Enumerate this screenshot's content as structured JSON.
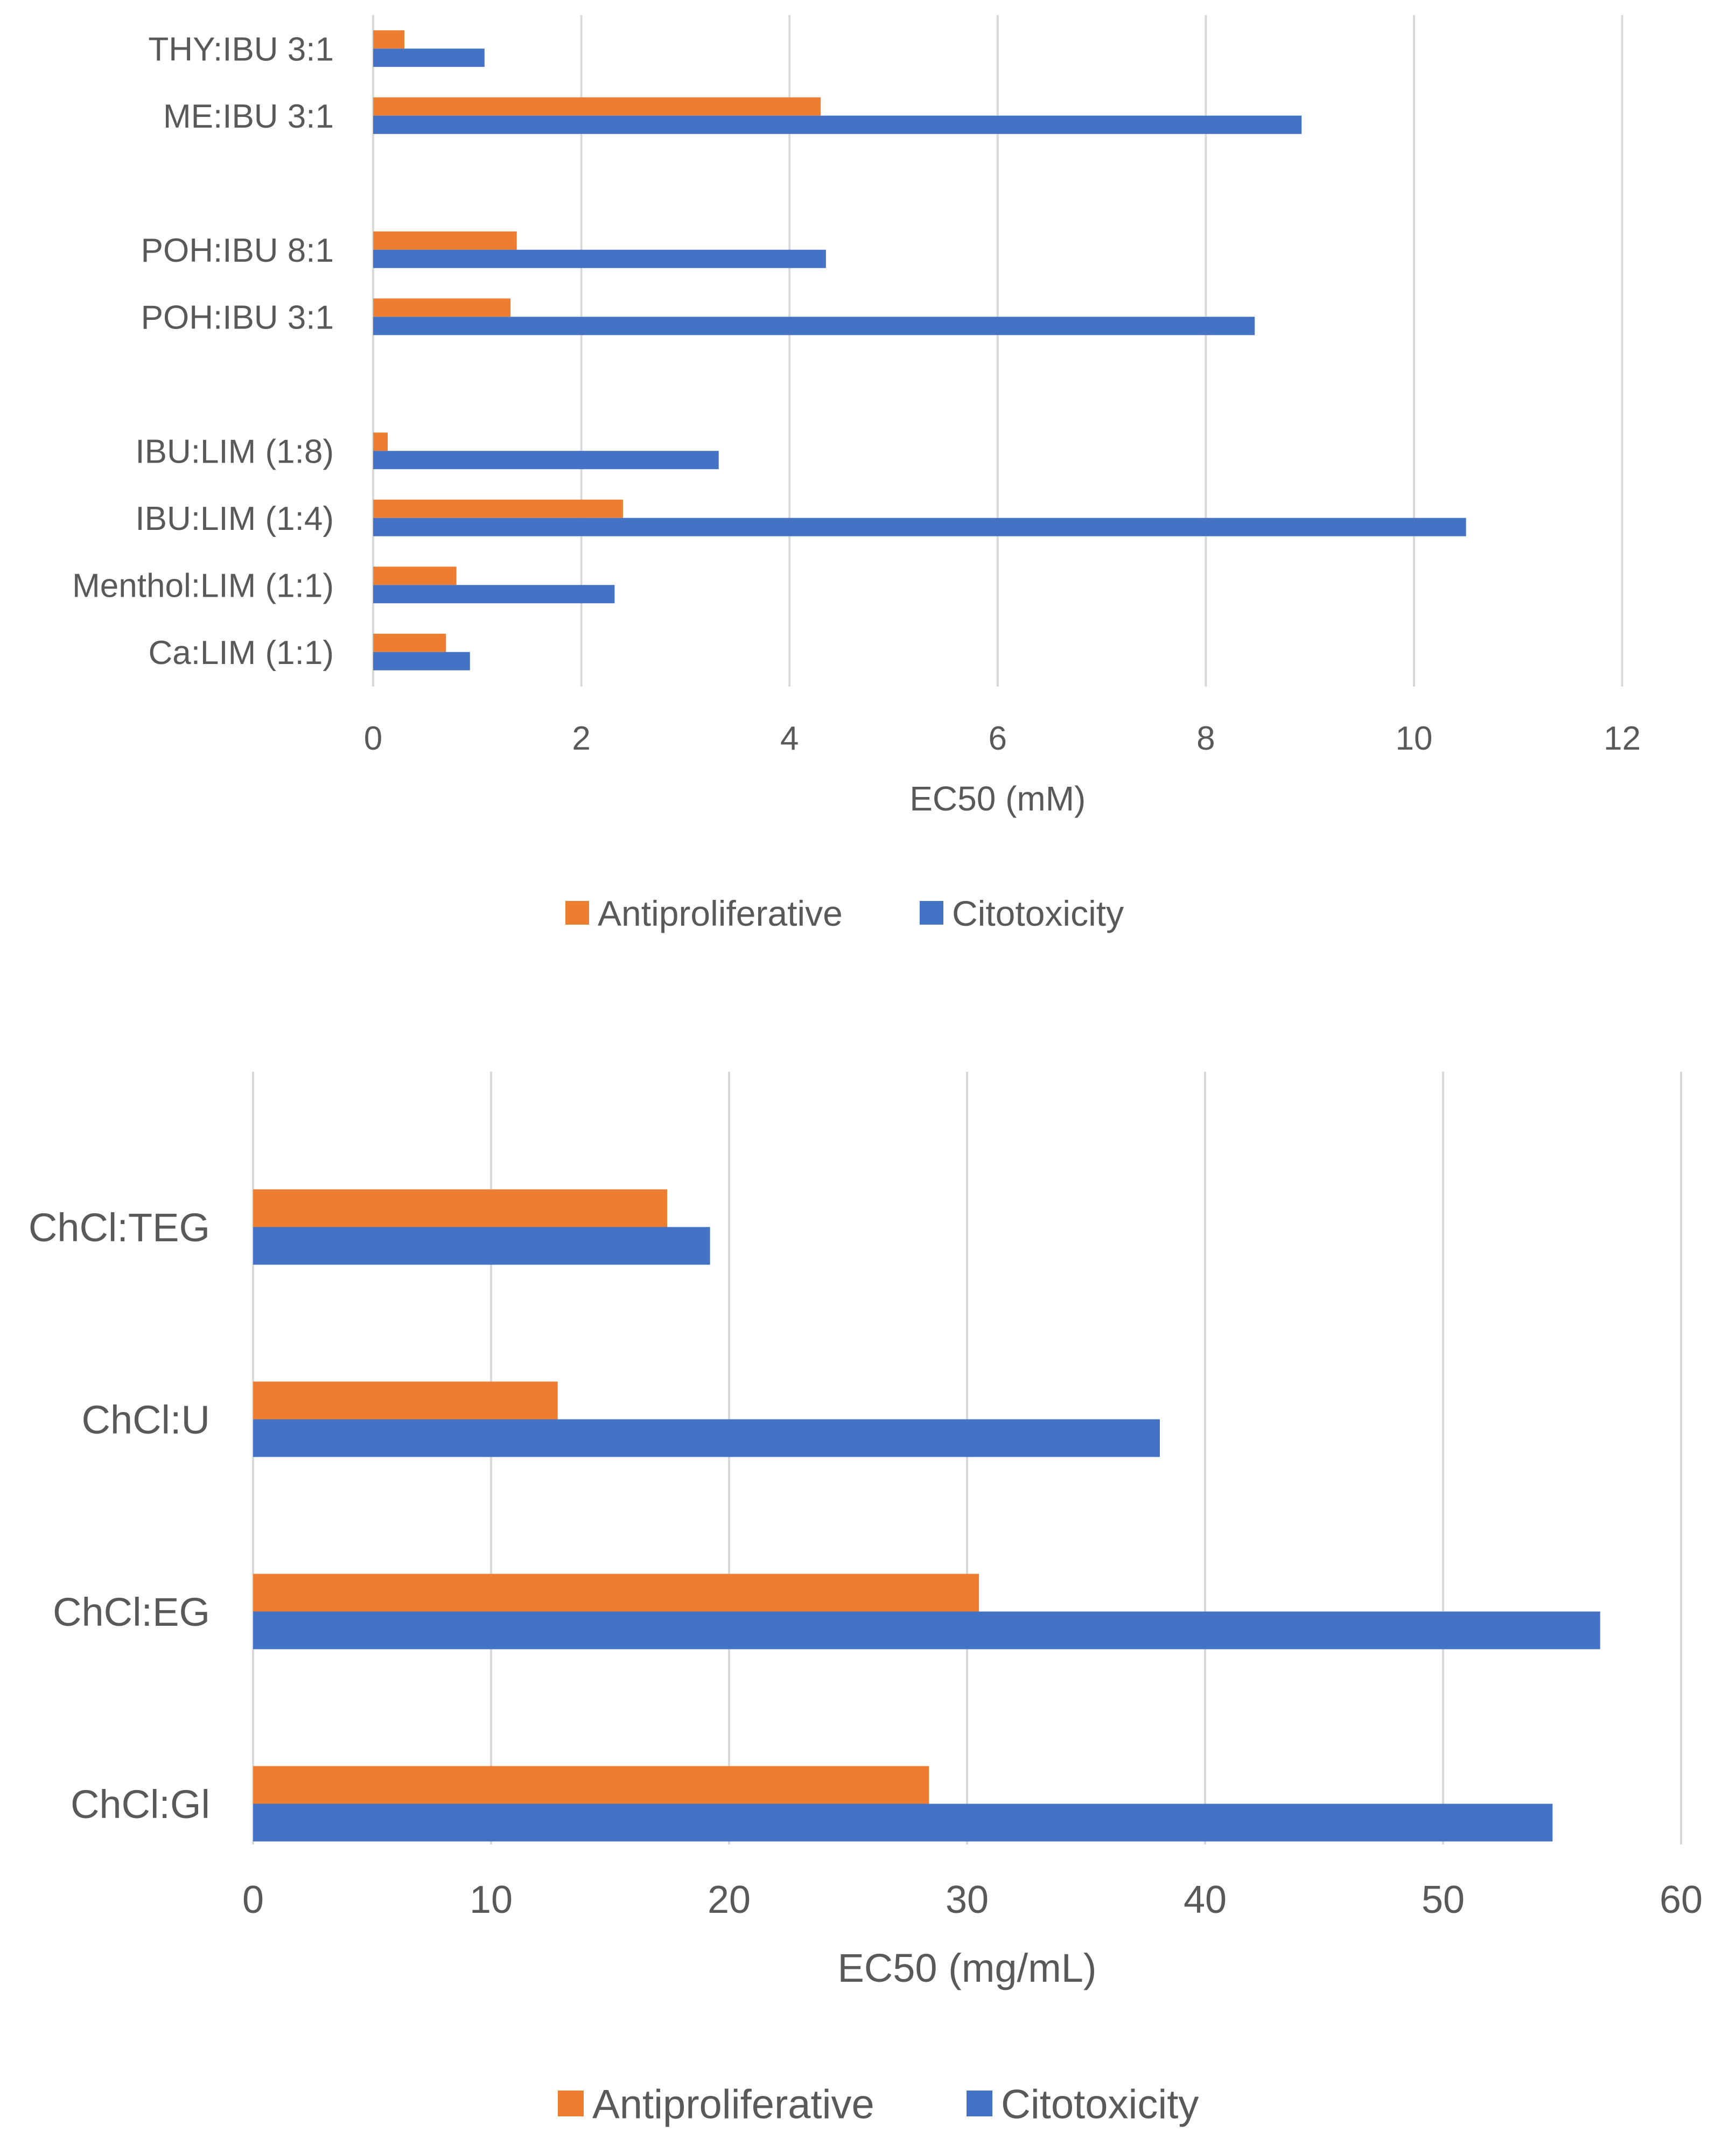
{
  "colors": {
    "antiproliferative": "#ED7D31",
    "citotoxicity": "#4472C4",
    "grid": "#D9D9D9",
    "text": "#595959"
  },
  "chart_data": [
    {
      "type": "bar",
      "orientation": "horizontal",
      "title": "",
      "xlabel": "EC50 (mM)",
      "ylabel": "",
      "xlim": [
        0,
        12
      ],
      "xticks": [
        0,
        2,
        4,
        6,
        8,
        10,
        12
      ],
      "grid": true,
      "legend": "bottom",
      "categories": [
        "THY:IBU 3:1",
        "ME:IBU 3:1",
        "",
        "POH:IBU 8:1",
        "POH:IBU 3:1",
        "",
        "IBU:LIM (1:8)",
        "IBU:LIM (1:4)",
        "Menthol:LIM (1:1)",
        "Ca:LIM (1:1)"
      ],
      "series": [
        {
          "name": "Antiproliferative",
          "values": [
            0.3,
            4.3,
            null,
            1.38,
            1.32,
            null,
            0.14,
            2.4,
            0.8,
            0.7
          ]
        },
        {
          "name": "Citotoxicity",
          "values": [
            1.07,
            8.92,
            null,
            4.35,
            8.47,
            null,
            3.32,
            10.5,
            2.32,
            0.93
          ]
        }
      ]
    },
    {
      "type": "bar",
      "orientation": "horizontal",
      "title": "",
      "xlabel": "EC50 (mg/mL)",
      "ylabel": "",
      "xlim": [
        0,
        60
      ],
      "xticks": [
        0,
        10,
        20,
        30,
        40,
        50,
        60
      ],
      "grid": true,
      "legend": "bottom",
      "categories": [
        "ChCl:TEG",
        "ChCl:U",
        "ChCl:EG",
        "ChCl:Gl"
      ],
      "series": [
        {
          "name": "Antiproliferative",
          "values": [
            17.4,
            12.8,
            30.5,
            28.4
          ]
        },
        {
          "name": "Citotoxicity",
          "values": [
            19.2,
            38.1,
            56.6,
            54.6
          ]
        }
      ]
    }
  ]
}
